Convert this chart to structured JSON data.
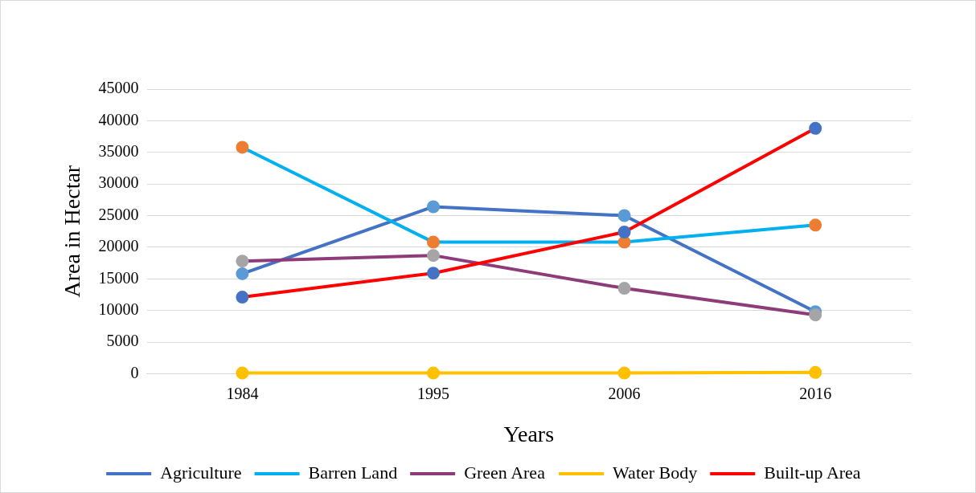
{
  "chart_data": {
    "type": "line",
    "xlabel": "Years",
    "ylabel": "Area in Hectar",
    "categories": [
      "1984",
      "1995",
      "2006",
      "2016"
    ],
    "series": [
      {
        "name": "Agriculture",
        "color": "#4472c4",
        "colors": [
          "#5b9bd5",
          "#5b9bd5",
          "#5b9bd5",
          "#5b9bd5"
        ],
        "values": [
          15800,
          26400,
          25000,
          9800
        ]
      },
      {
        "name": "Barren Land",
        "color": "#00b0f0",
        "colors": [
          "#ed7d31",
          "#ed7d31",
          "#ed7d31",
          "#ed7d31"
        ],
        "values": [
          35800,
          20800,
          20800,
          23500
        ]
      },
      {
        "name": "Green Area",
        "color": "#8e3b7a",
        "colors": [
          "#a5a5a5",
          "#a5a5a5",
          "#a5a5a5",
          "#a5a5a5"
        ],
        "values": [
          17800,
          18700,
          13500,
          9300
        ]
      },
      {
        "name": "Water Body",
        "color": "#ffc000",
        "colors": [
          "#ffc000",
          "#ffc000",
          "#ffc000",
          "#ffc000"
        ],
        "values": [
          100,
          100,
          100,
          200
        ]
      },
      {
        "name": "Built-up Area",
        "color": "#ff0000",
        "colors": [
          "#4472c4",
          "#4472c4",
          "#4472c4",
          "#4472c4"
        ],
        "values": [
          12100,
          15900,
          22400,
          38800
        ]
      }
    ],
    "ylim": [
      0,
      45000
    ],
    "yticks": [
      0,
      5000,
      10000,
      15000,
      20000,
      25000,
      30000,
      35000,
      40000,
      45000
    ],
    "grid": "y",
    "legend": "bottom",
    "marker": "circle",
    "line_style": "solid"
  }
}
